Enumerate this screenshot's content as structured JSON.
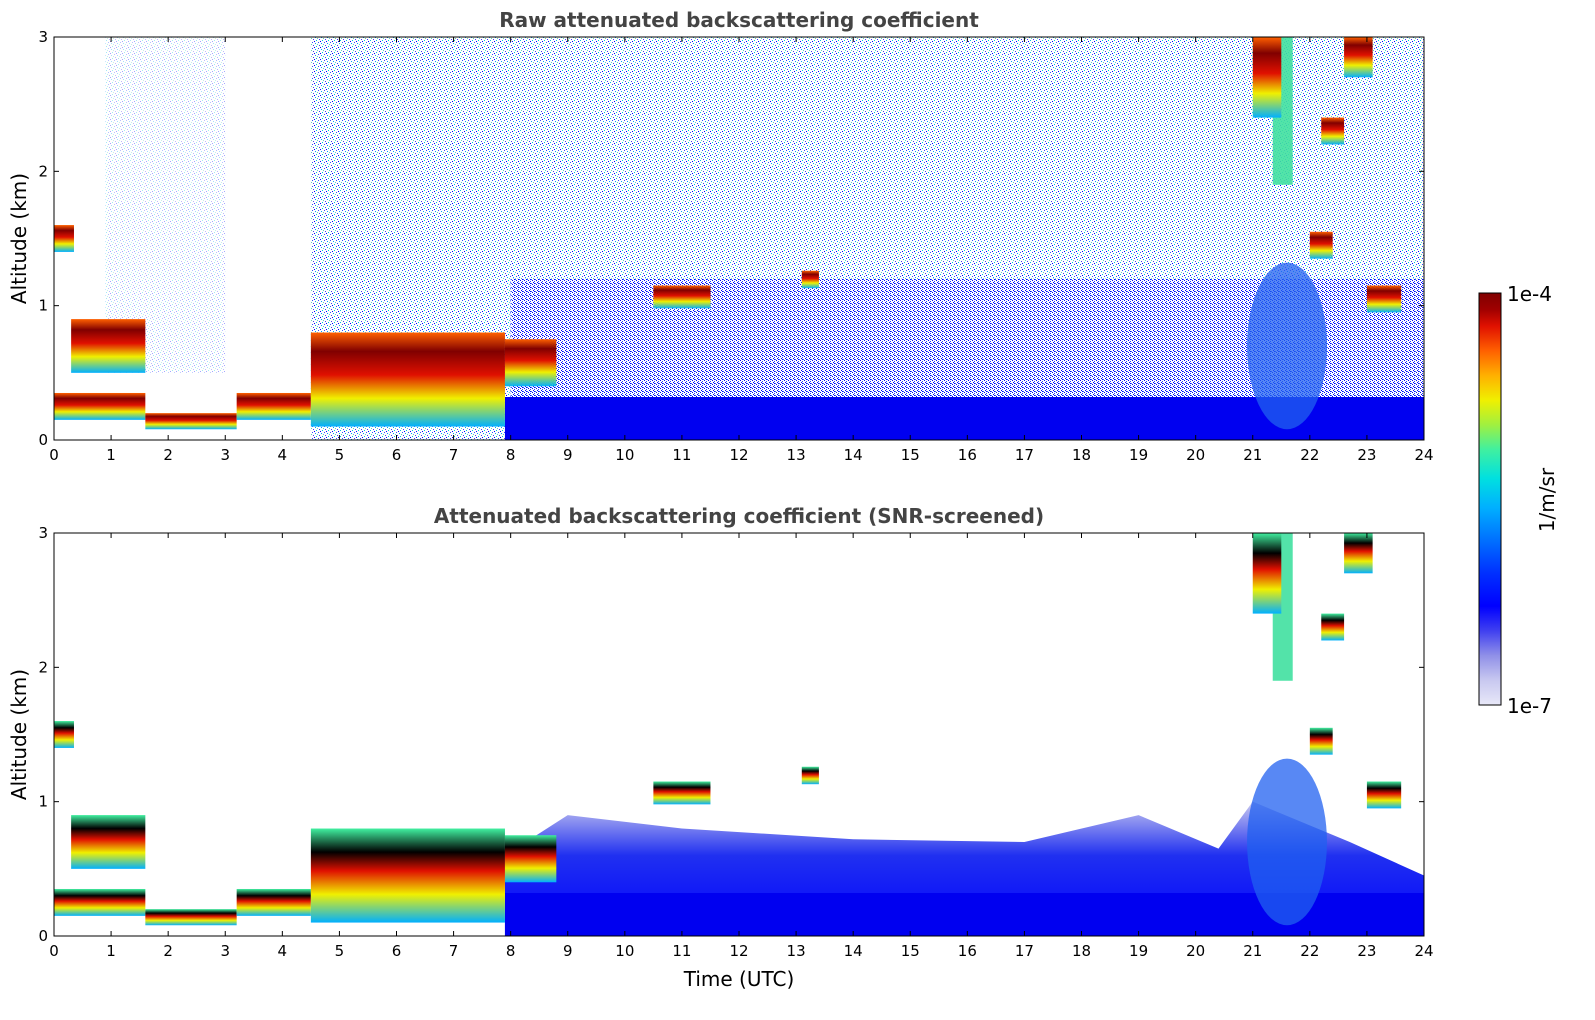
{
  "chart_data": [
    {
      "type": "heatmap",
      "title": "Raw attenuated backscattering coefficient",
      "xlabel": "",
      "ylabel": "Altitude (km)",
      "x_ticks": [
        "0",
        "1",
        "2",
        "3",
        "4",
        "5",
        "6",
        "7",
        "8",
        "9",
        "10",
        "11",
        "12",
        "13",
        "14",
        "15",
        "16",
        "17",
        "18",
        "19",
        "20",
        "21",
        "22",
        "23",
        "24"
      ],
      "y_ticks": [
        "0",
        "1",
        "2",
        "3"
      ],
      "xlim": [
        0,
        24
      ],
      "ylim": [
        0,
        3
      ],
      "z_scale": "log",
      "screened": false,
      "layers": [
        {
          "x0": 0.0,
          "x1": 1.6,
          "y0": 0.15,
          "y1": 0.35
        },
        {
          "x0": 1.6,
          "x1": 3.2,
          "y0": 0.08,
          "y1": 0.2
        },
        {
          "x0": 3.2,
          "x1": 4.5,
          "y0": 0.15,
          "y1": 0.35
        },
        {
          "x0": 4.5,
          "x1": 7.9,
          "y0": 0.1,
          "y1": 0.8
        },
        {
          "x0": 7.9,
          "x1": 8.8,
          "y0": 0.4,
          "y1": 0.75
        },
        {
          "x0": 0.3,
          "x1": 1.6,
          "y0": 0.5,
          "y1": 0.9
        },
        {
          "x0": 0.0,
          "x1": 0.35,
          "y0": 1.4,
          "y1": 1.6
        },
        {
          "x0": 10.5,
          "x1": 11.5,
          "y0": 0.98,
          "y1": 1.15
        },
        {
          "x0": 13.1,
          "x1": 13.4,
          "y0": 1.13,
          "y1": 1.26
        },
        {
          "x0": 21.0,
          "x1": 21.5,
          "y0": 2.4,
          "y1": 3.0
        },
        {
          "x0": 22.0,
          "x1": 22.4,
          "y0": 1.35,
          "y1": 1.55
        },
        {
          "x0": 22.6,
          "x1": 23.1,
          "y0": 2.7,
          "y1": 3.0
        },
        {
          "x0": 22.2,
          "x1": 22.6,
          "y0": 2.2,
          "y1": 2.4
        },
        {
          "x0": 23.0,
          "x1": 23.6,
          "y0": 0.95,
          "y1": 1.15
        }
      ]
    },
    {
      "type": "heatmap",
      "title": "Attenuated backscattering coefficient (SNR-screened)",
      "xlabel": "Time (UTC)",
      "ylabel": "Altitude (km)",
      "x_ticks": [
        "0",
        "1",
        "2",
        "3",
        "4",
        "5",
        "6",
        "7",
        "8",
        "9",
        "10",
        "11",
        "12",
        "13",
        "14",
        "15",
        "16",
        "17",
        "18",
        "19",
        "20",
        "21",
        "22",
        "23",
        "24"
      ],
      "y_ticks": [
        "0",
        "1",
        "2",
        "3"
      ],
      "xlim": [
        0,
        24
      ],
      "ylim": [
        0,
        3
      ],
      "z_scale": "log",
      "screened": true,
      "layers": [
        {
          "x0": 0.0,
          "x1": 1.6,
          "y0": 0.15,
          "y1": 0.35
        },
        {
          "x0": 1.6,
          "x1": 3.2,
          "y0": 0.08,
          "y1": 0.2
        },
        {
          "x0": 3.2,
          "x1": 4.5,
          "y0": 0.15,
          "y1": 0.35
        },
        {
          "x0": 4.5,
          "x1": 7.9,
          "y0": 0.1,
          "y1": 0.8
        },
        {
          "x0": 7.9,
          "x1": 8.8,
          "y0": 0.4,
          "y1": 0.75
        },
        {
          "x0": 0.3,
          "x1": 1.6,
          "y0": 0.5,
          "y1": 0.9
        },
        {
          "x0": 0.0,
          "x1": 0.35,
          "y0": 1.4,
          "y1": 1.6
        },
        {
          "x0": 10.5,
          "x1": 11.5,
          "y0": 0.98,
          "y1": 1.15
        },
        {
          "x0": 13.1,
          "x1": 13.4,
          "y0": 1.13,
          "y1": 1.26
        },
        {
          "x0": 21.0,
          "x1": 21.5,
          "y0": 2.4,
          "y1": 3.0
        },
        {
          "x0": 22.0,
          "x1": 22.4,
          "y0": 1.35,
          "y1": 1.55
        },
        {
          "x0": 22.6,
          "x1": 23.1,
          "y0": 2.7,
          "y1": 3.0
        },
        {
          "x0": 22.2,
          "x1": 22.6,
          "y0": 2.2,
          "y1": 2.4
        },
        {
          "x0": 23.0,
          "x1": 23.6,
          "y0": 0.95,
          "y1": 1.15
        }
      ]
    }
  ],
  "colorbar": {
    "label": "1/m/sr",
    "max_label": "1e-4",
    "min_label": "1e-7",
    "colors": [
      "#e8e8f8",
      "#c8c8f0",
      "#9090e8",
      "#4040f0",
      "#0000ff",
      "#0030ff",
      "#0070ff",
      "#00b0ff",
      "#00e0e0",
      "#40f0a0",
      "#a0f040",
      "#f0f000",
      "#ffb000",
      "#ff6000",
      "#e01000",
      "#a00000",
      "#800000"
    ],
    "screened_max_color": "#000000"
  }
}
